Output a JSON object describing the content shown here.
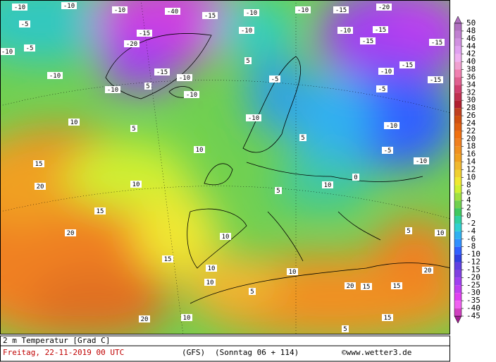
{
  "map": {
    "labels": [
      -10,
      -10,
      -5,
      -10,
      -5,
      -10,
      -10,
      -20,
      -15,
      -40,
      -15,
      -10,
      -10,
      -10,
      -10,
      -15,
      -10,
      5,
      5,
      -5,
      -10,
      -10,
      -15,
      -20,
      -10,
      -15,
      -15,
      -10,
      -15,
      -15,
      -15,
      -5,
      -10,
      -5,
      -10,
      10,
      5,
      10,
      15,
      20,
      10,
      15,
      20,
      15,
      10,
      10,
      5,
      5,
      10,
      0,
      5,
      10,
      20,
      15,
      15,
      20,
      20,
      10,
      5,
      15,
      5,
      10,
      10
    ]
  },
  "legend": {
    "ticks": [
      50,
      48,
      46,
      44,
      42,
      40,
      38,
      36,
      34,
      32,
      30,
      28,
      26,
      24,
      22,
      20,
      18,
      16,
      14,
      12,
      10,
      8,
      6,
      4,
      2,
      0,
      -2,
      -4,
      -6,
      -8,
      -10,
      -12,
      -15,
      -20,
      -25,
      -30,
      -35,
      -40,
      -45
    ],
    "colors": [
      "#b070c0",
      "#c080d0",
      "#d090e0",
      "#e0a0f0",
      "#f0b0f0",
      "#f0a0d0",
      "#f080b0",
      "#e06090",
      "#d04070",
      "#c03050",
      "#b02030",
      "#c04020",
      "#d05010",
      "#e06010",
      "#f07010",
      "#f08020",
      "#f09020",
      "#f0a020",
      "#f0b830",
      "#f0d030",
      "#f0e830",
      "#d0f030",
      "#a0e040",
      "#70d050",
      "#40c860",
      "#30d0a0",
      "#30d0d0",
      "#30b0f0",
      "#3090ff",
      "#3060ff",
      "#3040e0",
      "#6040e0",
      "#8040e0",
      "#a040f0",
      "#c040f0",
      "#e040f0",
      "#f060f0",
      "#d040c0",
      "#a02090"
    ]
  },
  "footer": {
    "variable": "2 m Temperatur [Grad C]",
    "date": "Freitag, 22-11-2019  00 UTC",
    "model": "(GFS)",
    "forecast": "(Sonntag 06 + 114)",
    "credit": "©www.wetter3.de"
  }
}
